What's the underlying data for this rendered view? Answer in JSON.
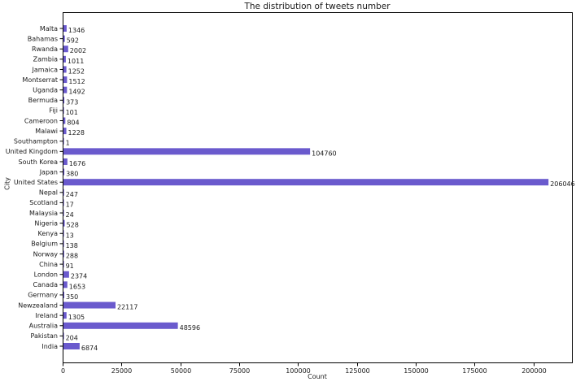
{
  "figure": {
    "title": "The distribution of tweets number",
    "xlabel": "Count",
    "ylabel": "City"
  },
  "chart_data": {
    "type": "bar",
    "orientation": "horizontal",
    "title": "The distribution of tweets number",
    "xlabel": "Count",
    "ylabel": "City",
    "categories": [
      "Malta",
      "Bahamas",
      "Rwanda",
      "Zambia",
      "Jamaica",
      "Montserrat",
      "Uganda",
      "Bermuda",
      "Fiji",
      "Cameroon",
      "Malawi",
      "Southampton",
      "United Kingdom",
      "South Korea",
      "Japan",
      "United States",
      "Nepal",
      "Scotland",
      "Malaysia",
      "Nigeria",
      "Kenya",
      "Belgium",
      "Norway",
      "China",
      "London",
      "Canada",
      "Germany",
      "Newzealand",
      "Ireland",
      "Australia",
      "Pakistan",
      "India"
    ],
    "values": [
      1346,
      592,
      2002,
      1011,
      1252,
      1512,
      1492,
      373,
      101,
      804,
      1228,
      1,
      104760,
      1676,
      380,
      206046,
      247,
      17,
      24,
      528,
      13,
      138,
      288,
      91,
      2374,
      1653,
      350,
      22117,
      1305,
      48596,
      204,
      6874
    ],
    "xticks": [
      0,
      25000,
      50000,
      75000,
      100000,
      125000,
      150000,
      175000,
      200000
    ],
    "xlim": [
      0,
      216348
    ],
    "bar_color": "#6A5ACD",
    "text_color": "#1a1a1a",
    "axis_color": "#000000",
    "grid": false,
    "legend": null
  }
}
